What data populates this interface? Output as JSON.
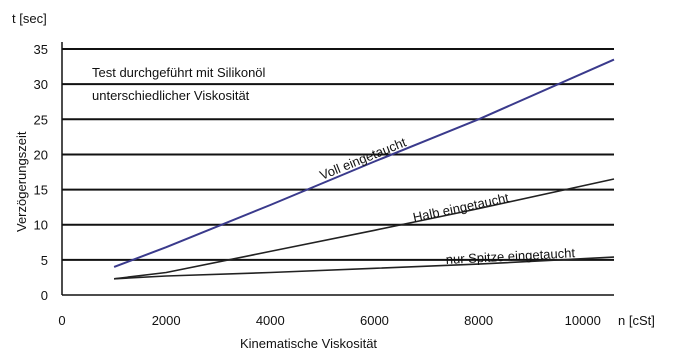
{
  "chart_data": {
    "type": "line",
    "ylabel_unit": "t [sec]",
    "ylabel": "Verzögerungszeit",
    "xlabel": "Kinematische Viskosität",
    "xlabel_unit": "n [cSt]",
    "xlim": [
      0,
      10600
    ],
    "ylim": [
      0,
      36
    ],
    "x_ticks": [
      0,
      2000,
      4000,
      6000,
      8000,
      10000
    ],
    "y_ticks": [
      0,
      5,
      10,
      15,
      20,
      25,
      30,
      35
    ],
    "grid": "horizontal",
    "note": [
      "Test durchgeführt mit Silikonöl",
      "unterschiedlicher Viskosität"
    ],
    "series": [
      {
        "name": "Voll eingetaucht",
        "color": "#3a3a8c",
        "points": [
          [
            1000,
            4.0
          ],
          [
            2000,
            6.8
          ],
          [
            4000,
            12.8
          ],
          [
            6000,
            19.0
          ],
          [
            8000,
            25.0
          ],
          [
            10600,
            33.5
          ]
        ]
      },
      {
        "name": "Halb eingetaucht",
        "color": "#222222",
        "points": [
          [
            1000,
            2.3
          ],
          [
            2000,
            3.2
          ],
          [
            4000,
            6.2
          ],
          [
            6000,
            9.2
          ],
          [
            8000,
            12.3
          ],
          [
            10600,
            16.5
          ]
        ]
      },
      {
        "name": "nur Spitze eingetaucht",
        "color": "#222222",
        "points": [
          [
            1000,
            2.3
          ],
          [
            2000,
            2.7
          ],
          [
            4000,
            3.2
          ],
          [
            6000,
            3.8
          ],
          [
            8000,
            4.4
          ],
          [
            10600,
            5.4
          ]
        ]
      }
    ]
  }
}
